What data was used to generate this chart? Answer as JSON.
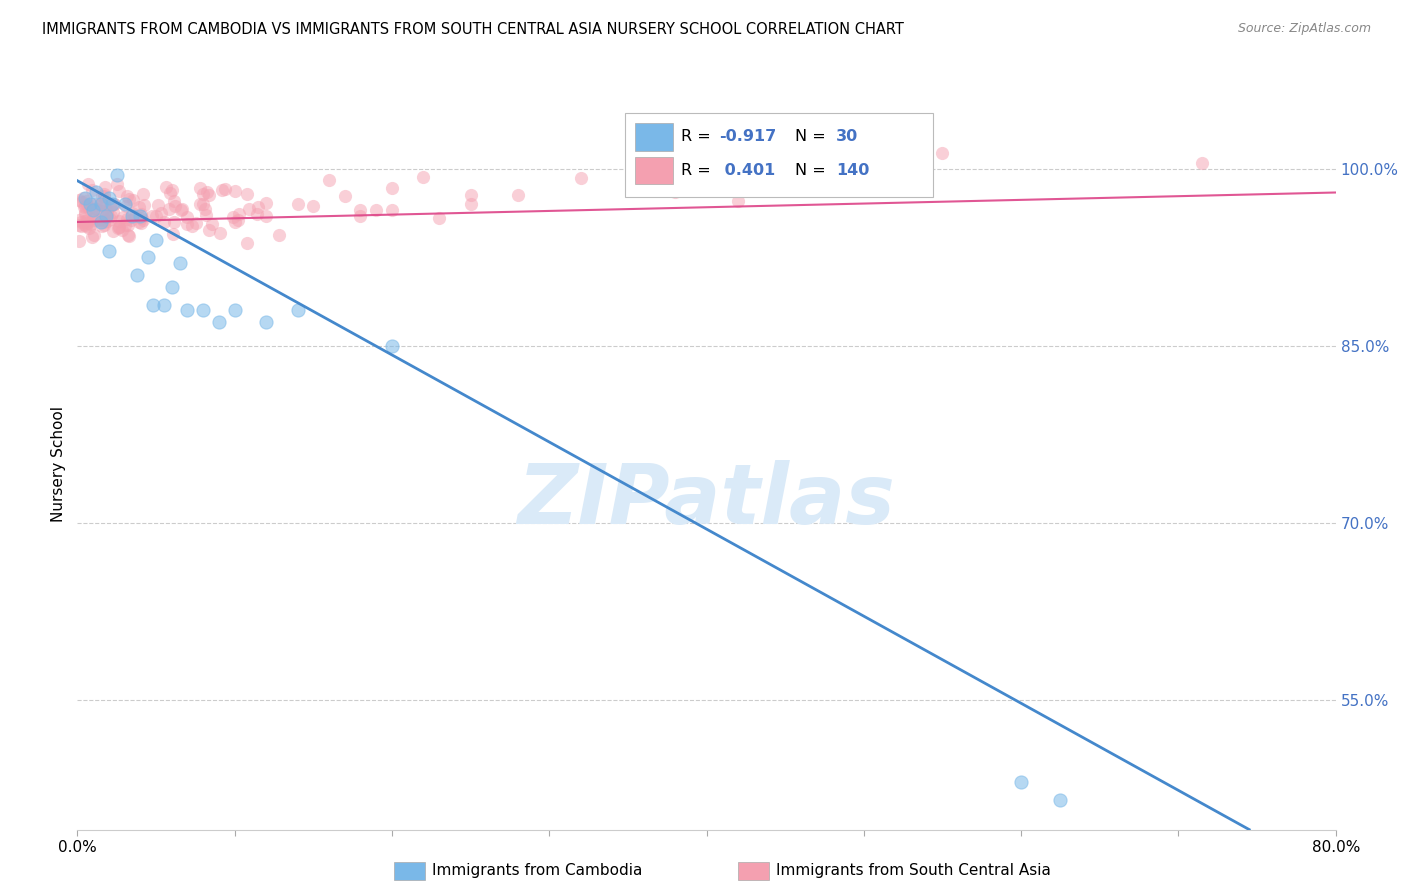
{
  "title": "IMMIGRANTS FROM CAMBODIA VS IMMIGRANTS FROM SOUTH CENTRAL ASIA NURSERY SCHOOL CORRELATION CHART",
  "source": "Source: ZipAtlas.com",
  "ylabel": "Nursery School",
  "ytick_labels": [
    "100.0%",
    "85.0%",
    "70.0%",
    "55.0%"
  ],
  "ytick_values": [
    1.0,
    0.85,
    0.7,
    0.55
  ],
  "xlim": [
    0.0,
    0.8
  ],
  "ylim": [
    0.44,
    1.06
  ],
  "legend_blue_R": "-0.917",
  "legend_blue_N": "30",
  "legend_pink_R": "0.401",
  "legend_pink_N": "140",
  "legend_label_blue": "Immigrants from Cambodia",
  "legend_label_pink": "Immigrants from South Central Asia",
  "blue_color": "#7ab8e8",
  "pink_color": "#f4a0b0",
  "blue_line_color": "#4488cc",
  "pink_line_color": "#dd4488",
  "blue_scatter_alpha": 0.55,
  "pink_scatter_alpha": 0.5,
  "watermark": "ZIPatlas",
  "watermark_color": "#daeaf8",
  "blue_scatter_x": [
    0.005,
    0.008,
    0.01,
    0.012,
    0.015,
    0.015,
    0.018,
    0.02,
    0.02,
    0.022,
    0.025,
    0.03,
    0.035,
    0.038,
    0.04,
    0.045,
    0.048,
    0.05,
    0.055,
    0.06,
    0.065,
    0.07,
    0.08,
    0.09,
    0.1,
    0.12,
    0.14,
    0.2,
    0.6,
    0.625
  ],
  "blue_scatter_y": [
    0.975,
    0.97,
    0.965,
    0.98,
    0.955,
    0.97,
    0.96,
    0.93,
    0.975,
    0.97,
    0.995,
    0.97,
    0.96,
    0.91,
    0.96,
    0.925,
    0.885,
    0.94,
    0.885,
    0.9,
    0.92,
    0.88,
    0.88,
    0.87,
    0.88,
    0.87,
    0.88,
    0.85,
    0.48,
    0.465
  ],
  "pink_line_x0": 0.0,
  "pink_line_x1": 0.8,
  "pink_line_y0": 0.955,
  "pink_line_y1": 0.98,
  "blue_line_x0": 0.0,
  "blue_line_x1": 0.745,
  "blue_line_y0": 0.99,
  "blue_line_y1": 0.44
}
